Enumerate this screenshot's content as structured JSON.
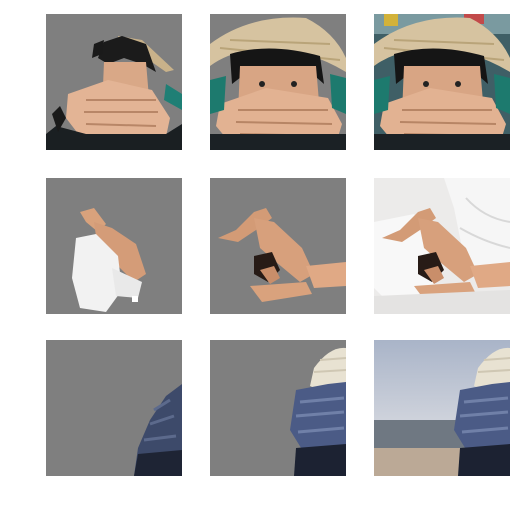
{
  "figure": {
    "rows": [
      {
        "panels": [
          {
            "panel": "segmented-mask",
            "background": "#7f7f7f"
          },
          {
            "panel": "refined-mask",
            "background": "#7f7f7f"
          },
          {
            "panel": "original-image"
          }
        ]
      },
      {
        "panels": [
          {
            "panel": "segmented-mask",
            "background": "#7f7f7f"
          },
          {
            "panel": "refined-mask",
            "background": "#7f7f7f"
          },
          {
            "panel": "original-image"
          }
        ]
      },
      {
        "panels": [
          {
            "panel": "segmented-mask",
            "background": "#7f7f7f"
          },
          {
            "panel": "refined-mask",
            "background": "#7f7f7f"
          },
          {
            "panel": "original-image"
          }
        ]
      }
    ]
  }
}
